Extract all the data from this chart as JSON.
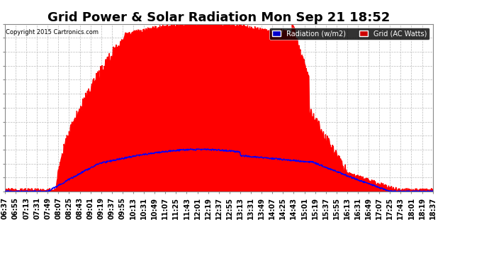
{
  "title": "Grid Power & Solar Radiation Mon Sep 21 18:52",
  "copyright": "Copyright 2015 Cartronics.com",
  "legend_labels": [
    "Radiation (w/m2)",
    "Grid (AC Watts)"
  ],
  "legend_bg_colors": [
    "#0000cc",
    "#cc0000"
  ],
  "y_ticks": [
    -23.0,
    226.2,
    475.4,
    724.6,
    973.7,
    1222.9,
    1472.1,
    1721.3,
    1970.5,
    2219.7,
    2468.9,
    2718.1,
    2967.2
  ],
  "ylim": [
    -23.0,
    2967.2
  ],
  "x_labels": [
    "06:37",
    "06:55",
    "07:13",
    "07:31",
    "07:49",
    "08:07",
    "08:25",
    "08:43",
    "09:01",
    "09:19",
    "09:37",
    "09:55",
    "10:13",
    "10:31",
    "10:49",
    "11:07",
    "11:25",
    "11:43",
    "12:01",
    "12:19",
    "12:37",
    "12:55",
    "13:13",
    "13:31",
    "13:49",
    "14:07",
    "14:25",
    "14:43",
    "15:01",
    "15:19",
    "15:37",
    "15:55",
    "16:13",
    "16:31",
    "16:49",
    "17:07",
    "17:25",
    "17:43",
    "18:01",
    "18:19",
    "18:37"
  ],
  "bg_color": "#ffffff",
  "plot_bg_color": "#ffffff",
  "grid_color": "#bbbbbb",
  "radiation_color": "#ff0000",
  "grid_line_color": "#0000ff",
  "title_fontsize": 13,
  "tick_fontsize": 7,
  "n_points": 1000
}
